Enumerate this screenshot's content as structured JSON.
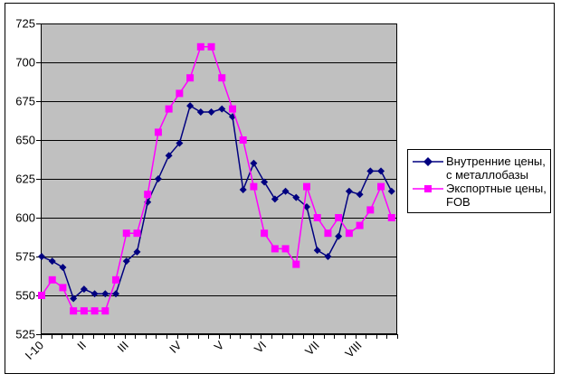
{
  "chart_data": {
    "type": "line",
    "title": "",
    "plot_bg": "#c0c0c0",
    "grid": true,
    "legend_position": "middle-right",
    "ylim": [
      525,
      725
    ],
    "ytick_step": 25,
    "yticks": [
      725,
      700,
      675,
      650,
      625,
      600,
      575,
      550,
      525
    ],
    "n_points": 34,
    "x_labels": [
      "I-10",
      "II",
      "III",
      "IV",
      "V",
      "VI",
      "VII",
      "VIII"
    ],
    "x_label_point_indices": [
      0,
      4,
      8,
      13,
      17,
      21,
      26,
      30
    ],
    "series": [
      {
        "name": "Внутренние цены, с металлобазы",
        "color": "#000080",
        "marker": "diamond",
        "values": [
          575,
          572,
          568,
          548,
          554,
          551,
          551,
          551,
          572,
          578,
          610,
          625,
          640,
          648,
          672,
          668,
          668,
          670,
          665,
          618,
          635,
          623,
          612,
          617,
          613,
          607,
          579,
          575,
          588,
          617,
          615,
          630,
          630,
          617
        ]
      },
      {
        "name": "Экспортные цены, FOB",
        "color": "#ff00ff",
        "marker": "square",
        "values": [
          550,
          560,
          555,
          540,
          540,
          540,
          540,
          560,
          590,
          590,
          615,
          655,
          670,
          680,
          690,
          710,
          710,
          690,
          670,
          650,
          620,
          590,
          580,
          580,
          570,
          620,
          600,
          590,
          600,
          590,
          595,
          605,
          620,
          600
        ]
      }
    ]
  }
}
